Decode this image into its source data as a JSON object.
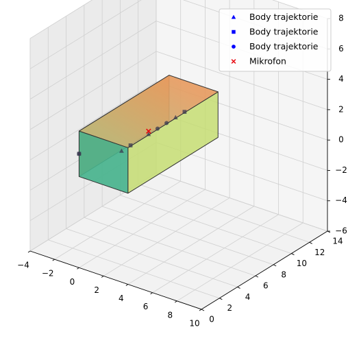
{
  "chart_data": {
    "type": "scatter",
    "projection": "3d",
    "grid": true,
    "legend_placement": "top-right",
    "xlim": [
      -4,
      10
    ],
    "ylim": [
      0,
      14
    ],
    "zlim": [
      -6,
      8
    ],
    "x_ticks": [
      "−4",
      "−2",
      "0",
      "2",
      "4",
      "6",
      "8",
      "10"
    ],
    "y_ticks": [
      "0",
      "2",
      "4",
      "6",
      "8",
      "10",
      "12",
      "14"
    ],
    "z_ticks": [
      "−6",
      "−4",
      "−2",
      "0",
      "2",
      "4",
      "6",
      "8"
    ],
    "room_box": {
      "x": [
        0,
        4
      ],
      "y": [
        0,
        10
      ],
      "z": [
        0,
        3
      ],
      "colors": {
        "left": "#f2955a",
        "front": "#45b38c",
        "right": "#c6dd72",
        "top": "#bcb778",
        "top_tint": "#e79a5e",
        "edge": "#333333"
      }
    },
    "series": [
      {
        "name": "Body trajektorie",
        "marker": "triangle",
        "color": "#0000ff",
        "points": [
          {
            "x": 2,
            "y": 2,
            "z": 1.5
          },
          {
            "x": 2,
            "y": 5,
            "z": 1.5
          },
          {
            "x": 2,
            "y": 8,
            "z": 1.5
          }
        ]
      },
      {
        "name": "Body trajektorie",
        "marker": "square",
        "color": "#0000ff",
        "points": [
          {
            "x": 0,
            "y": 0,
            "z": 1.5
          },
          {
            "x": 2,
            "y": 3,
            "z": 1.5
          },
          {
            "x": 2,
            "y": 9,
            "z": 1.5
          }
        ]
      },
      {
        "name": "Body trajektorie",
        "marker": "circle",
        "color": "#0000ff",
        "points": [
          {
            "x": 0,
            "y": 0,
            "z": 1.5
          },
          {
            "x": 2,
            "y": 6,
            "z": 1.5
          },
          {
            "x": 2,
            "y": 7,
            "z": 1.5
          }
        ]
      },
      {
        "name": "Mikrofon",
        "marker": "x",
        "color": "#e8000b",
        "points": [
          {
            "x": 2,
            "y": 5,
            "z": 1.7
          }
        ]
      }
    ]
  }
}
